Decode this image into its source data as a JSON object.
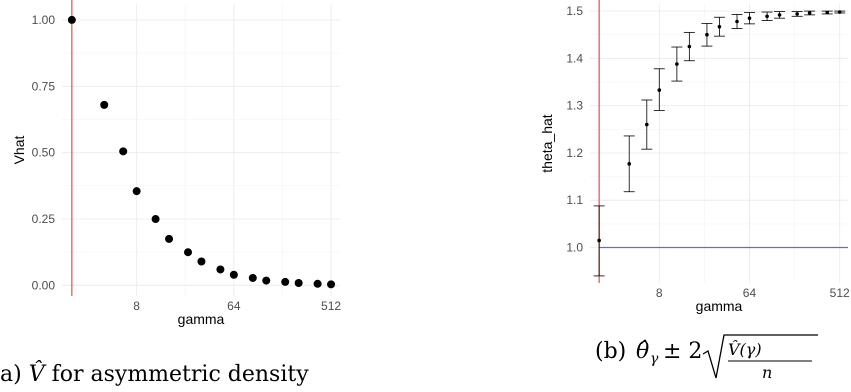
{
  "chart_data": [
    {
      "type": "scatter",
      "panel": "a",
      "x_scale": "log2",
      "x": [
        2,
        4,
        6,
        8,
        12,
        16,
        24,
        32,
        48,
        64,
        96,
        128,
        192,
        256,
        384,
        512
      ],
      "y": [
        1.0,
        0.68,
        0.505,
        0.355,
        0.25,
        0.175,
        0.125,
        0.09,
        0.06,
        0.04,
        0.028,
        0.018,
        0.013,
        0.009,
        0.006,
        0.004
      ],
      "xlabel": "gamma",
      "ylabel": "Vhat",
      "x_ticks": [
        8,
        64,
        512
      ],
      "y_ticks": [
        0.0,
        0.25,
        0.5,
        0.75,
        1.0
      ],
      "y_tick_labels": [
        "0.00",
        "0.25",
        "0.50",
        "0.75",
        "1.00"
      ],
      "ylim": [
        -0.04,
        1.06
      ],
      "reference_vline_x": 2,
      "reference_vline_color": "#d9534f",
      "caption": "(a) V̂ for asymmetric density"
    },
    {
      "type": "scatter",
      "panel": "b",
      "x_scale": "log2",
      "x": [
        2,
        4,
        6,
        8,
        12,
        16,
        24,
        32,
        48,
        64,
        96,
        128,
        192,
        256,
        384,
        512
      ],
      "y": [
        1.015,
        1.177,
        1.26,
        1.333,
        1.388,
        1.425,
        1.45,
        1.467,
        1.478,
        1.485,
        1.489,
        1.492,
        1.494,
        1.496,
        1.497,
        1.498
      ],
      "err_low": [
        0.94,
        1.118,
        1.208,
        1.29,
        1.352,
        1.395,
        1.426,
        1.447,
        1.463,
        1.473,
        1.48,
        1.485,
        1.489,
        1.492,
        1.494,
        1.496
      ],
      "err_high": [
        1.088,
        1.236,
        1.312,
        1.378,
        1.424,
        1.455,
        1.474,
        1.487,
        1.493,
        1.497,
        1.498,
        1.499,
        1.499,
        1.5,
        1.5,
        1.5
      ],
      "xlabel": "gamma",
      "ylabel": "theta_hat",
      "x_ticks": [
        8,
        64,
        512
      ],
      "y_ticks": [
        1.0,
        1.1,
        1.2,
        1.3,
        1.4,
        1.5
      ],
      "y_tick_labels": [
        "1.0",
        "1.1",
        "1.2",
        "1.3",
        "1.4",
        "1.5"
      ],
      "ylim": [
        0.925,
        1.515
      ],
      "reference_vline_x": 2,
      "reference_vline_color": "#d9534f",
      "reference_hline_y": 1.0,
      "reference_hline_color": "#6b6bc4",
      "caption": "(b) θ̂γ ± 2√(V̂(γ)/n)"
    }
  ]
}
